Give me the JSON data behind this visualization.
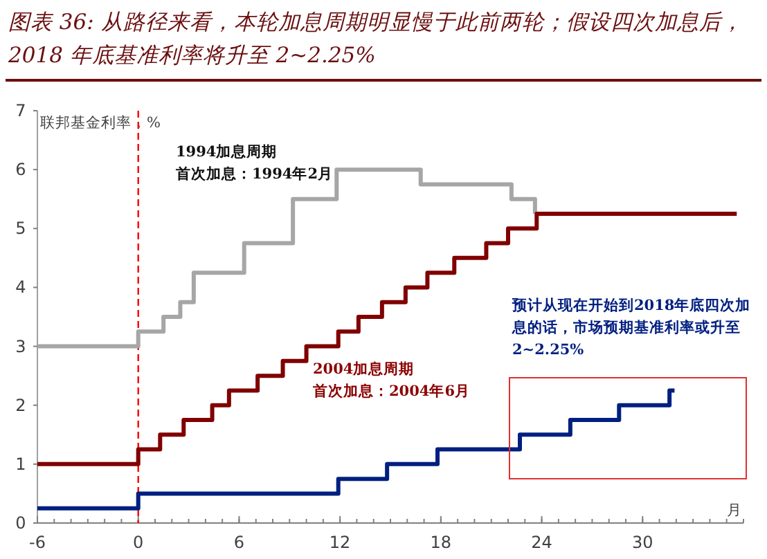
{
  "chart_data": {
    "type": "step",
    "title": "图表 36: 从路径来看，本轮加息周期明显慢于此前两轮；假设四次加息后，2018 年底基准利率将升至 2~2.25%",
    "xlabel": "月",
    "ylabel": "联邦基金利率，%",
    "xlim": [
      -6,
      36
    ],
    "xticks": [
      -6,
      0,
      6,
      12,
      18,
      24,
      30
    ],
    "ylim": [
      0,
      7
    ],
    "yticks": [
      0,
      1,
      2,
      3,
      4,
      5,
      6,
      7
    ],
    "grid": false,
    "marker": "none",
    "line_style": "solid",
    "series": [
      {
        "color": "#a6a6a6",
        "x": [
          -6,
          0,
          1.5,
          2.5,
          3.3,
          6.3,
          9.2,
          11.8,
          16.8,
          22.2,
          23.6
        ],
        "values": [
          3,
          3.25,
          3.5,
          3.75,
          4.25,
          4.75,
          5.5,
          6,
          5.75,
          5.5,
          5.25
        ]
      },
      {
        "color": "#800000",
        "x": [
          -6,
          0,
          1.3,
          2.7,
          4.4,
          5.4,
          7.1,
          8.6,
          10,
          11.9,
          13.1,
          14.5,
          15.9,
          17.2,
          18.8,
          20.7,
          22,
          23.7,
          35.6
        ],
        "values": [
          1,
          1.25,
          1.5,
          1.75,
          2,
          2.25,
          2.5,
          2.75,
          3,
          3.25,
          3.5,
          3.75,
          4,
          4.25,
          4.5,
          4.75,
          5,
          5.25,
          5.25
        ]
      },
      {
        "color": "#001f80",
        "x": [
          -6,
          0,
          11.9,
          14.8,
          17.8,
          22.7,
          25.7,
          28.6,
          31.6,
          31.9
        ],
        "values": [
          0.25,
          0.5,
          0.75,
          1,
          1.25,
          1.5,
          1.75,
          2,
          2.25,
          2.25
        ]
      }
    ],
    "ref_lines": [
      {
        "axis": "x",
        "value": 0,
        "color": "#ff0000",
        "line_style": "dashed"
      }
    ],
    "annotations": [
      "1994加息周期",
      "首次加息：1994年2月",
      "2004加息周期",
      "首次加息：2004年6月",
      "预计从现在开始到2018年底四次加息的话，市场预期基准利率或升至2~2.25%"
    ]
  }
}
